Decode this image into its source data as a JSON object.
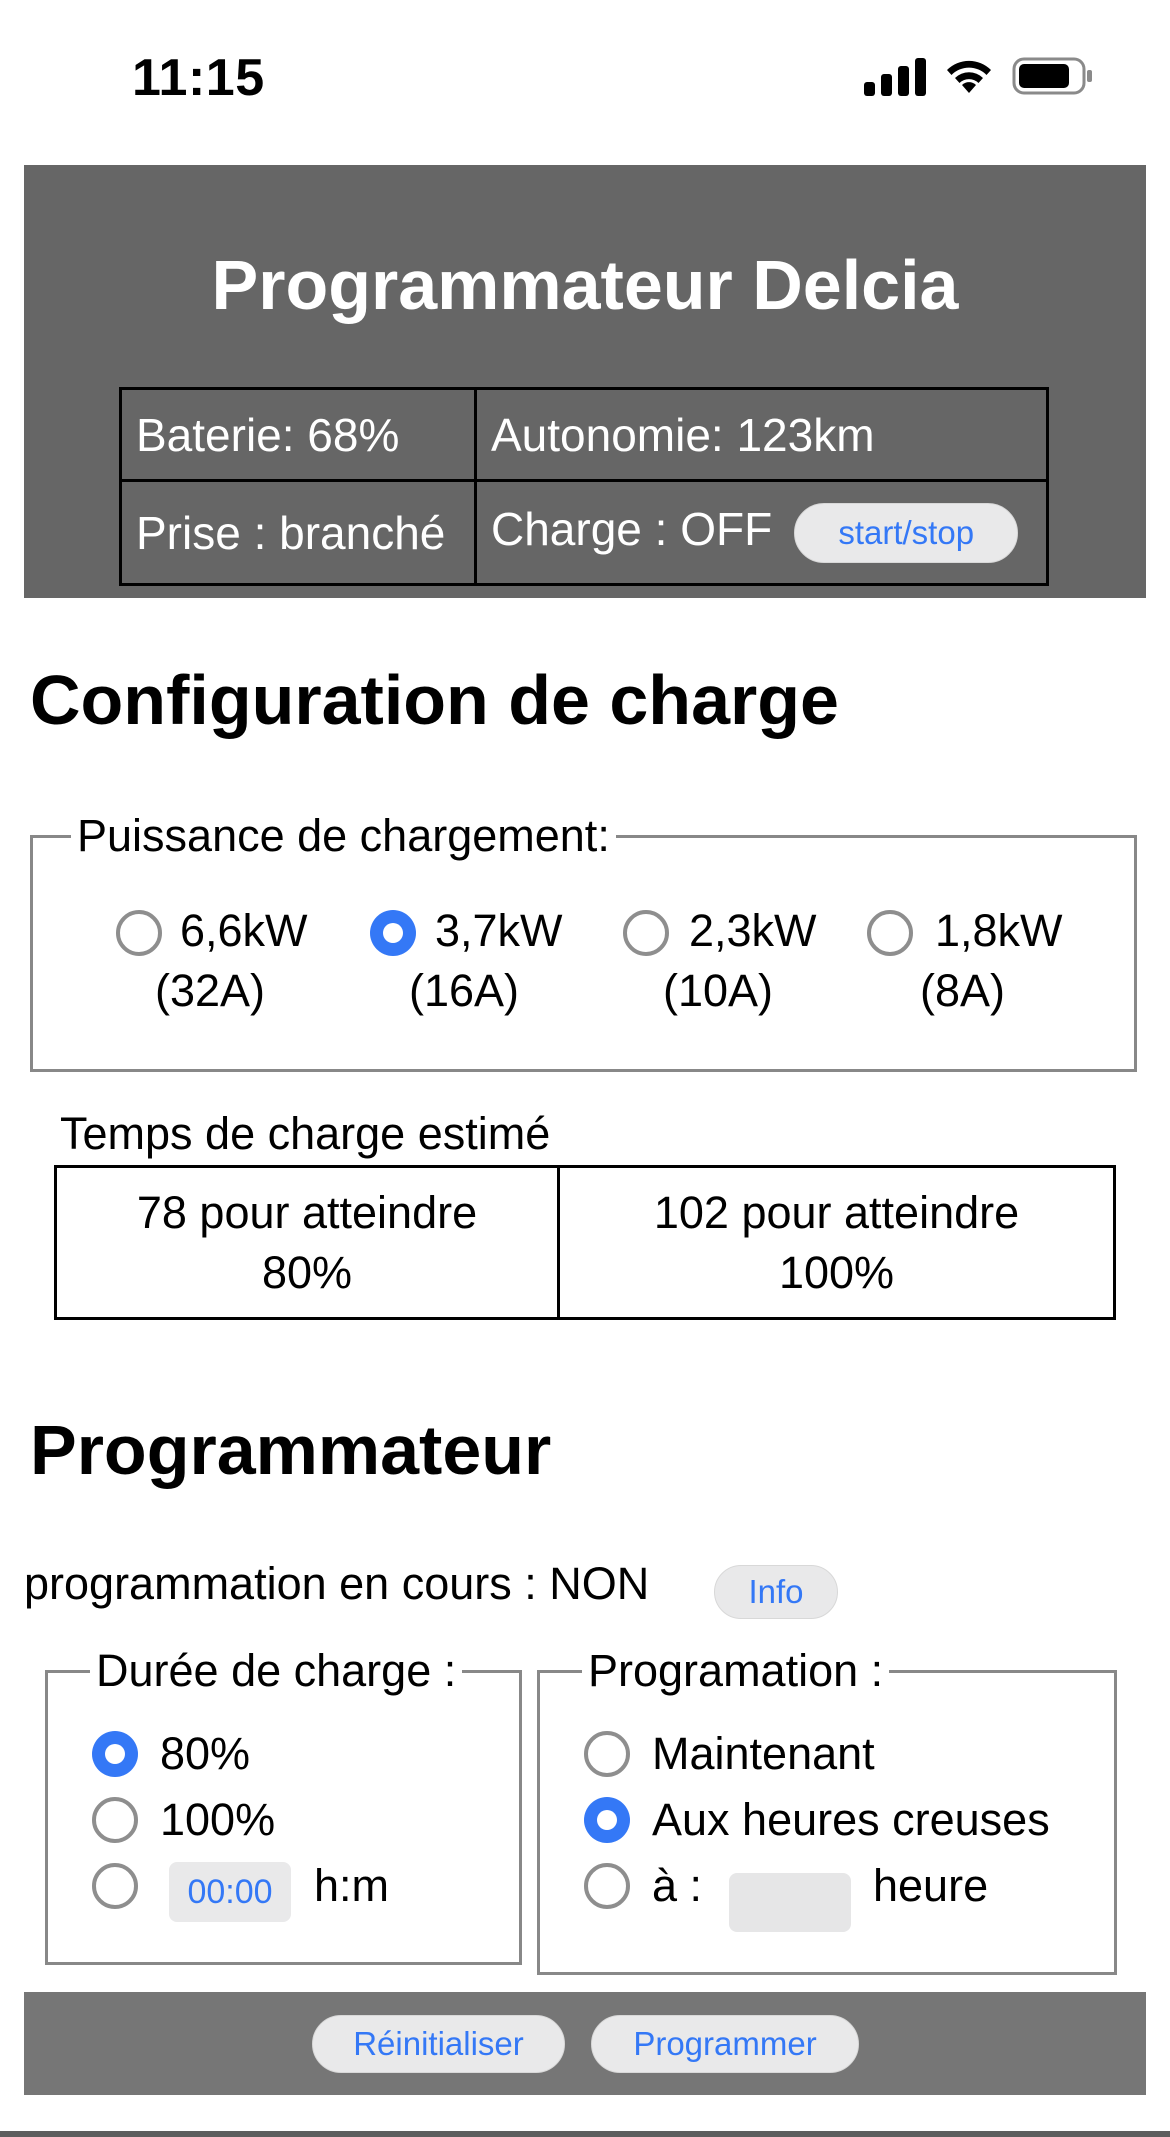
{
  "status_bar": {
    "time": "11:15"
  },
  "header": {
    "title": "Programmateur Delcia",
    "battery_label": "Baterie: 68%",
    "range_label": "Autonomie: 123km",
    "plug_label": "Prise : branché",
    "charge_label": "Charge : OFF",
    "start_stop_label": "start/stop"
  },
  "config": {
    "title": "Configuration de charge",
    "power_legend": "Puissance de chargement:",
    "power_options": [
      {
        "line1": "6,6kW",
        "line2": "(32A)",
        "selected": false
      },
      {
        "line1": "3,7kW",
        "line2": "(16A)",
        "selected": true
      },
      {
        "line1": "2,3kW",
        "line2": "(10A)",
        "selected": false
      },
      {
        "line1": "1,8kW",
        "line2": "(8A)",
        "selected": false
      }
    ],
    "estimate_label": "Temps de charge estimé",
    "estimate_80_line1": "78 pour atteindre",
    "estimate_80_line2": "80%",
    "estimate_100_line1": "102 pour atteindre",
    "estimate_100_line2": "100%"
  },
  "programmer": {
    "title": "Programmateur",
    "status_text": "programmation en cours : NON",
    "info_label": "Info",
    "duration_legend": "Durée de charge :",
    "duration_options": [
      {
        "label": "80%",
        "selected": true
      },
      {
        "label": "100%",
        "selected": false
      }
    ],
    "duration_time_value": "00:00",
    "duration_time_unit": "h:m",
    "schedule_legend": "Programation :",
    "schedule_options": [
      {
        "label": "Maintenant",
        "selected": false
      },
      {
        "label": "Aux heures creuses",
        "selected": true
      }
    ],
    "schedule_at_label": "à :",
    "schedule_hour_unit": "heure"
  },
  "footer": {
    "reset_label": "Réinitialiser",
    "submit_label": "Programmer"
  },
  "colors": {
    "header_bg": "#666666",
    "footer_bg": "#767676",
    "accent": "#3478f6",
    "button_bg": "#e9e9ea"
  }
}
